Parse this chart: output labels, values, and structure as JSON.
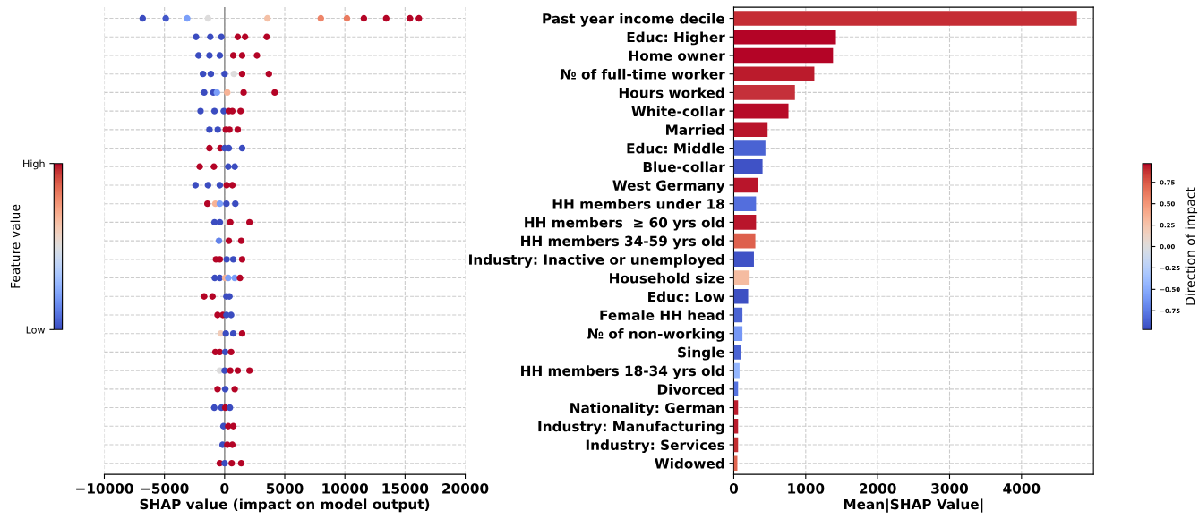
{
  "chart_data": [
    {
      "type": "scatter",
      "orientation": "horizontal",
      "xlabel": "SHAP value (impact on model output)",
      "clabel": "Feature value",
      "categories": [
        null,
        null,
        null,
        null,
        null,
        null,
        null,
        null,
        null,
        null,
        null,
        null,
        null,
        null,
        null,
        null,
        null,
        null,
        null,
        null,
        null,
        null,
        null,
        null,
        null
      ],
      "series": [
        {
          "values": [
            -6810,
            -2370,
            -2170,
            -1800,
            -1700,
            -2000,
            -1260,
            -1260,
            -2070,
            -2420,
            -1430,
            -840,
            -470,
            -720,
            -820,
            -1700,
            -590,
            -320,
            -770,
            -400,
            -590,
            -860,
            -100,
            -170,
            -400
          ],
          "colors": [
            "#3b4cc0",
            "#3b4cc0",
            "#3b4cc0",
            "#3b4cc0",
            "#3b4cc0",
            "#3b4cc0",
            "#3b4cc0",
            "#b40426",
            "#b40426",
            "#3b4cc0",
            "#b40426",
            "#3b4cc0",
            "#6282ea",
            "#b40426",
            "#3b4cc0",
            "#b40426",
            "#b40426",
            "#f2cbb7",
            "#b40426",
            "#dddcdc",
            "#b40426",
            "#3b4cc0",
            "#3b4cc0",
            "#3b4cc0",
            "#b40426"
          ]
        },
        {
          "values": [
            -4890,
            -1190,
            -1260,
            -1140,
            -940,
            -840,
            -570,
            -350,
            -890,
            -1380,
            -770,
            -400,
            350,
            -400,
            -400,
            -1010,
            -150,
            100,
            -400,
            0,
            50,
            -270,
            300,
            220,
            0
          ],
          "colors": [
            "#4257c9",
            "#3b4cc0",
            "#3b4cc0",
            "#3b4cc0",
            "#3b4cc0",
            "#3b4cc0",
            "#3b4cc0",
            "#b40426",
            "#b40426",
            "#3b4cc0",
            "#f7b396",
            "#3b4cc0",
            "#b40426",
            "#b40426",
            "#3b4cc0",
            "#b40426",
            "#b40426",
            "#3b4cc0",
            "#b40426",
            "#3b4cc0",
            "#3b4cc0",
            "#3b4cc0",
            "#b40426",
            "#b40426",
            "#3b4cc0"
          ]
        },
        {
          "values": [
            -3110,
            -270,
            -400,
            0,
            -640,
            -70,
            100,
            0,
            300,
            -400,
            -400,
            150,
            1380,
            170,
            50,
            150,
            150,
            720,
            50,
            470,
            840,
            50,
            720,
            640,
            590
          ],
          "colors": [
            "#7b9ff9",
            "#3b4cc0",
            "#3b4cc0",
            "#3b4cc0",
            "#7b9ff9",
            "#3b4cc0",
            "#b40426",
            "#3b4cc0",
            "#3b4cc0",
            "#3b4cc0",
            "#7b9ff9",
            "#dddcdc",
            "#b40426",
            "#3b4cc0",
            "#f7b396",
            "#3b4cc0",
            "#3b4cc0",
            "#3b4cc0",
            "#3b4cc0",
            "#b40426",
            "#b40426",
            "#b40426",
            "#b40426",
            "#b40426",
            "#b40426"
          ]
        },
        {
          "values": [
            -1380,
            1090,
            720,
            770,
            220,
            350,
            400,
            350,
            840,
            170,
            150,
            470,
            null,
            720,
            300,
            400,
            540,
            1460,
            540,
            1090,
            null,
            440,
            null,
            null,
            1380
          ],
          "colors": [
            "#dddcdc",
            "#b40426",
            "#b40426",
            "#dddcdc",
            "#f7b396",
            "#b40426",
            "#b40426",
            "#3b4cc0",
            "#3b4cc0",
            "#b40426",
            "#3b4cc0",
            "#b40426",
            null,
            "#3b4cc0",
            "#7b9ff9",
            "#3b4cc0",
            "#3b4cc0",
            "#b40426",
            "#b40426",
            "#b40426",
            null,
            "#3b4cc0",
            null,
            null,
            "#b40426"
          ]
        },
        {
          "values": [
            3560,
            1700,
            1460,
            1460,
            1580,
            640,
            1090,
            1460,
            null,
            640,
            890,
            2070,
            null,
            1460,
            840,
            null,
            null,
            null,
            null,
            2070,
            null,
            null,
            null,
            null,
            null
          ],
          "colors": [
            "#f4c0a6",
            "#b40426",
            "#b40426",
            "#b40426",
            "#b40426",
            "#b40426",
            "#b40426",
            "#3b4cc0",
            null,
            "#b40426",
            "#3b4cc0",
            "#b40426",
            null,
            "#b40426",
            "#7b9ff9",
            null,
            null,
            null,
            null,
            "#b40426",
            null,
            null,
            null,
            null,
            null
          ]
        },
        {
          "values": [
            8000,
            3500,
            2690,
            3680,
            4170,
            1330,
            null,
            null,
            null,
            null,
            null,
            null,
            null,
            null,
            1280,
            null,
            null,
            null,
            null,
            null,
            null,
            null,
            null,
            null,
            null
          ],
          "colors": [
            "#ee8468",
            "#b40426",
            "#b40426",
            "#b40426",
            "#b40426",
            "#b40426",
            null,
            null,
            null,
            null,
            null,
            null,
            null,
            null,
            "#b40426",
            null,
            null,
            null,
            null,
            null,
            null,
            null,
            null,
            null,
            null
          ]
        },
        {
          "values": [
            10170,
            null,
            null,
            null,
            null,
            null,
            null,
            null,
            null,
            null,
            null,
            null,
            null,
            null,
            null,
            null,
            null,
            null,
            null,
            null,
            null,
            null,
            null,
            null,
            null
          ],
          "color": "#ea7b60"
        },
        {
          "values": [
            11580,
            null,
            null,
            null,
            null,
            null,
            null,
            null,
            null,
            null,
            null,
            null,
            null,
            null,
            null,
            null,
            null,
            null,
            null,
            null,
            null,
            null,
            null,
            null,
            null
          ],
          "color": "#b40426"
        },
        {
          "values": [
            13430,
            null,
            null,
            null,
            null,
            null,
            null,
            null,
            null,
            null,
            null,
            null,
            null,
            null,
            null,
            null,
            null,
            null,
            null,
            null,
            null,
            null,
            null,
            null,
            null
          ],
          "color": "#b40426"
        },
        {
          "values": [
            15410,
            null,
            null,
            null,
            null,
            null,
            null,
            null,
            null,
            null,
            null,
            null,
            null,
            null,
            null,
            null,
            null,
            null,
            null,
            null,
            null,
            null,
            null,
            null,
            null
          ],
          "color": "#b40426"
        },
        {
          "values": [
            16150,
            null,
            null,
            null,
            null,
            null,
            null,
            null,
            null,
            null,
            null,
            null,
            null,
            null,
            null,
            null,
            null,
            null,
            null,
            null,
            null,
            null,
            null,
            null,
            null
          ],
          "color": "#b40426"
        }
      ],
      "xlim": [
        -10000,
        20000
      ],
      "xticks": [
        {
          "value": -10000,
          "label": "−10000"
        },
        {
          "value": -5000,
          "label": "−5000"
        },
        0,
        5000,
        10000,
        15000,
        20000
      ],
      "clim": [
        0,
        1
      ],
      "cticks": [
        {
          "value": 0,
          "label": "Low"
        },
        {
          "value": 1,
          "label": "High"
        }
      ],
      "ref_lines": [
        {
          "axis": "x",
          "value": 0,
          "label": null,
          "color": "#999999"
        }
      ],
      "grid": true,
      "tick_labels": "x"
    },
    {
      "type": "bar",
      "orientation": "horizontal",
      "xlabel": "Mean|SHAP Value|",
      "clabel": "Direction of impact",
      "categories": [
        "Past year income decile",
        "Educ: Higher",
        "Home owner",
        "№ of full-time worker",
        "Hours worked",
        "White-collar",
        "Married",
        "Educ: Middle",
        "Blue-collar",
        "West Germany",
        "HH members under 18",
        "HH members  ≥ 60 yrs old",
        "HH members 34-59 yrs old",
        "Industry: Inactive or unemployed",
        "Household size",
        "Educ: Low",
        "Female HH head",
        "№ of non-working",
        "Single",
        "HH members 18-34 yrs old",
        "Divorced",
        "Nationality: German",
        "Industry: Manufacturing",
        "Industry: Services",
        "Widowed"
      ],
      "values": [
        4770,
        1420,
        1380,
        1120,
        850,
        760,
        470,
        440,
        400,
        340,
        310,
        310,
        300,
        280,
        220,
        200,
        120,
        120,
        100,
        80,
        60,
        60,
        60,
        60,
        50
      ],
      "colors": [
        "#c52d35",
        "#b40426",
        "#b40426",
        "#bb1b2c",
        "#c5303a",
        "#b70b28",
        "#b9152b",
        "#4a63d3",
        "#3f52c6",
        "#b9152b",
        "#536edd",
        "#b9152b",
        "#de604d",
        "#3f52c6",
        "#f5bca1",
        "#3d50c3",
        "#4a63d3",
        "#7597f6",
        "#4a63d3",
        "#93b5fe",
        "#5572df",
        "#bb1b2c",
        "#bb1b2c",
        "#c32e31",
        "#e0654f"
      ],
      "xlim": [
        0,
        5000
      ],
      "xticks": [
        0,
        1000,
        2000,
        3000,
        4000
      ],
      "clim": [
        -0.97,
        0.97
      ],
      "cticks": [
        {
          "value": -0.75,
          "label": "−0.75"
        },
        {
          "value": -0.5,
          "label": "−0.50"
        },
        {
          "value": -0.25,
          "label": "−0.25"
        },
        {
          "value": 0,
          "label": "0.00"
        },
        {
          "value": 0.25,
          "label": "0.25"
        },
        {
          "value": 0.5,
          "label": "0.50"
        },
        {
          "value": 0.75,
          "label": "0.75"
        }
      ],
      "grid": true
    }
  ]
}
